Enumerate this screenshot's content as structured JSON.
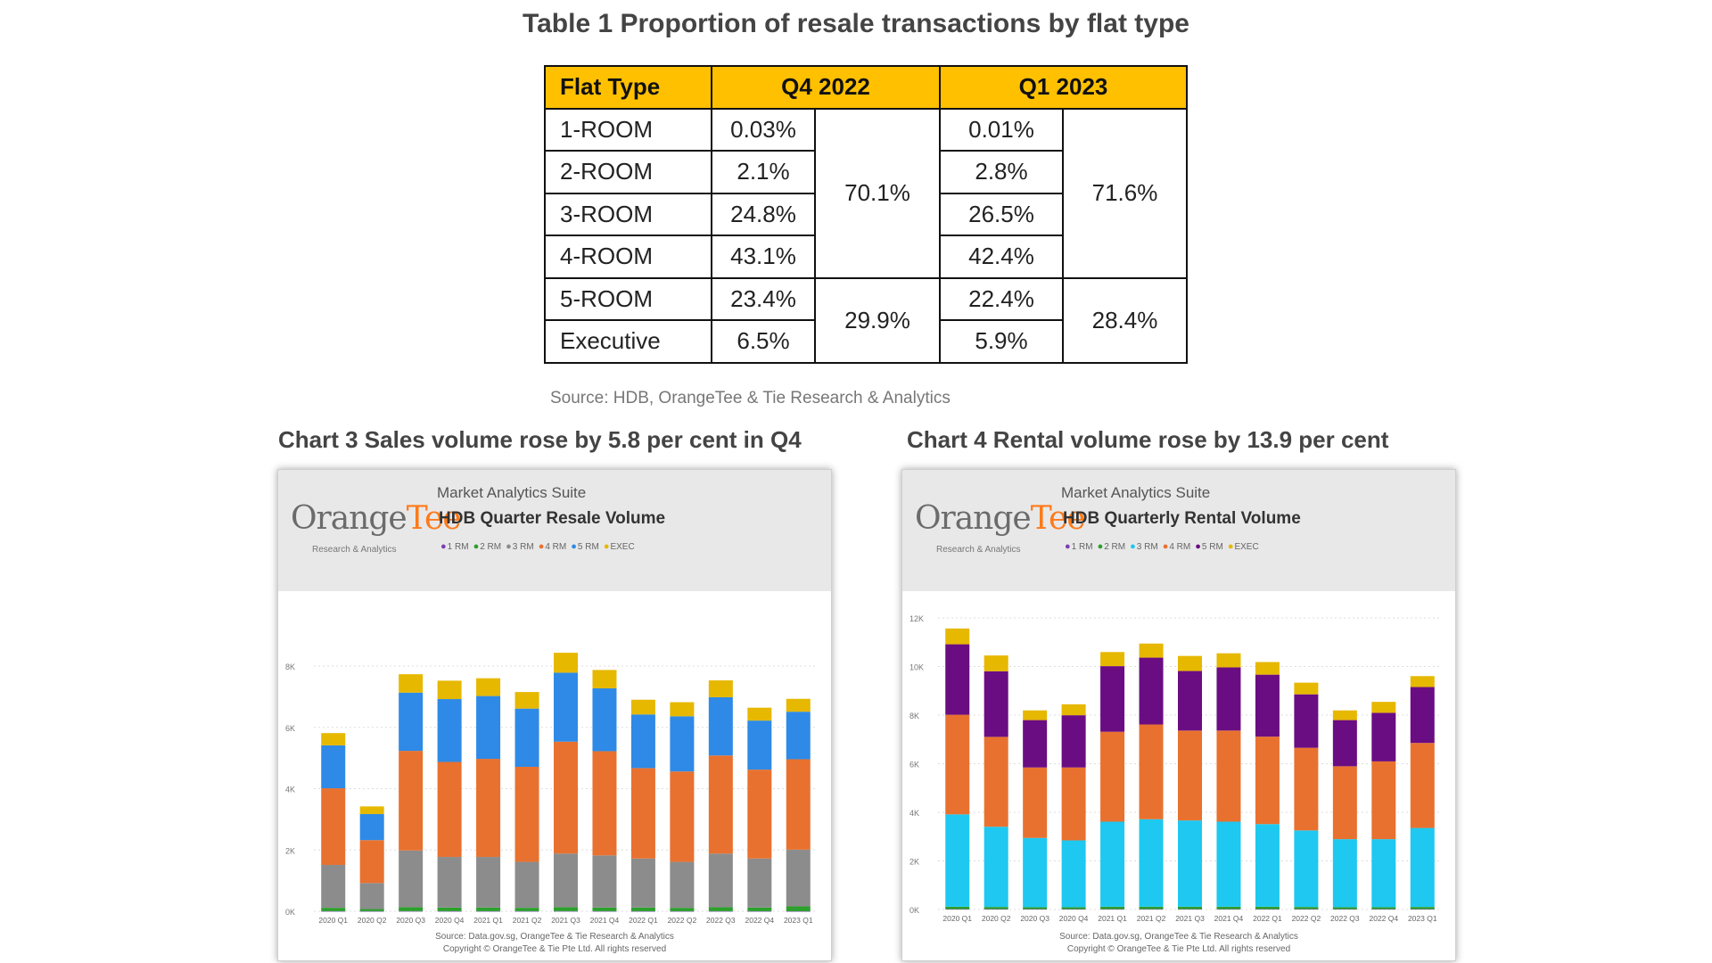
{
  "table": {
    "title": "Table 1 Proportion of resale transactions by flat type",
    "headers": [
      "Flat Type",
      "Q4 2022",
      "Q1 2023"
    ],
    "rows": [
      {
        "type": "1-ROOM",
        "q4": "0.03%",
        "q1": "0.01%"
      },
      {
        "type": "2-ROOM",
        "q4": "2.1%",
        "q1": "2.8%"
      },
      {
        "type": "3-ROOM",
        "q4": "24.8%",
        "q1": "26.5%"
      },
      {
        "type": "4-ROOM",
        "q4": "43.1%",
        "q1": "42.4%"
      },
      {
        "type": "5-ROOM",
        "q4": "23.4%",
        "q1": "22.4%"
      },
      {
        "type": "Executive",
        "q4": "6.5%",
        "q1": "5.9%"
      }
    ],
    "groups": {
      "q4_small": "70.1%",
      "q4_large": "29.9%",
      "q1_small": "71.6%",
      "q1_large": "28.4%"
    },
    "source": "Source: HDB, OrangeTee & Tie Research & Analytics",
    "header_color": "#ffc000"
  },
  "logo": {
    "orange": "Orange",
    "tee": "Tee",
    "sub": "Research & Analytics",
    "suite": "Market Analytics Suite"
  },
  "footer": {
    "line1": "Source: Data.gov.sg, OrangeTee & Tie Research & Analytics",
    "line2": "Copyright © OrangeTee & Tie Pte Ltd. All rights reserved"
  },
  "chart_data": [
    {
      "heading": "Chart 3 Sales volume rose by 5.8 per cent in Q4",
      "type": "bar",
      "stacked": true,
      "title": "HDB Quarter Resale Volume",
      "categories": [
        "2020 Q1",
        "2020 Q2",
        "2020 Q3",
        "2020 Q4",
        "2021 Q1",
        "2021 Q2",
        "2021 Q3",
        "2021 Q4",
        "2022 Q1",
        "2022 Q2",
        "2022 Q3",
        "2022 Q4",
        "2023 Q1"
      ],
      "yticks": [
        "0K",
        "2K",
        "4K",
        "6K",
        "8K"
      ],
      "ylim": [
        0,
        8000
      ],
      "grid": true,
      "legend_position": "top",
      "series": [
        {
          "name": "1 RM",
          "color": "#7b3fb5",
          "values": [
            3,
            2,
            4,
            3,
            3,
            3,
            4,
            3,
            2,
            2,
            3,
            2,
            1
          ]
        },
        {
          "name": "2 RM",
          "color": "#2ca02c",
          "values": [
            110,
            70,
            130,
            120,
            120,
            110,
            130,
            120,
            120,
            110,
            130,
            120,
            160
          ]
        },
        {
          "name": "3 RM",
          "color": "#8c8c8c",
          "values": [
            1400,
            850,
            1850,
            1650,
            1650,
            1500,
            1750,
            1700,
            1600,
            1500,
            1750,
            1600,
            1850
          ]
        },
        {
          "name": "4 RM",
          "color": "#e8712f",
          "values": [
            2500,
            1400,
            3250,
            3100,
            3200,
            3100,
            3650,
            3400,
            2950,
            2950,
            3200,
            2900,
            2950
          ]
        },
        {
          "name": "5 RM",
          "color": "#2e8ae6",
          "values": [
            1400,
            850,
            1900,
            2050,
            2050,
            1900,
            2250,
            2050,
            1750,
            1800,
            1900,
            1600,
            1550
          ]
        },
        {
          "name": "EXEC",
          "color": "#e6b800",
          "values": [
            400,
            250,
            600,
            600,
            580,
            540,
            650,
            600,
            480,
            460,
            550,
            420,
            420
          ]
        }
      ]
    },
    {
      "heading": "Chart 4 Rental volume rose by 13.9 per cent",
      "type": "bar",
      "stacked": true,
      "title": "HDB Quarterly Rental Volume",
      "categories": [
        "2020 Q1",
        "2020 Q2",
        "2020 Q3",
        "2020 Q4",
        "2021 Q1",
        "2021 Q2",
        "2021 Q3",
        "2021 Q4",
        "2022 Q1",
        "2022 Q2",
        "2022 Q3",
        "2022 Q4",
        "2023 Q1"
      ],
      "yticks": [
        "0K",
        "2K",
        "4K",
        "6K",
        "8K",
        "10K",
        "12K"
      ],
      "ylim": [
        0,
        12000
      ],
      "grid": true,
      "legend_position": "top",
      "series": [
        {
          "name": "1 RM",
          "color": "#7b3fb5",
          "values": [
            15,
            15,
            15,
            15,
            15,
            15,
            15,
            15,
            15,
            15,
            15,
            15,
            15
          ]
        },
        {
          "name": "2 RM",
          "color": "#2ca02c",
          "values": [
            100,
            90,
            80,
            80,
            100,
            100,
            100,
            100,
            100,
            90,
            80,
            80,
            90
          ]
        },
        {
          "name": "3 RM",
          "color": "#1ec8f0",
          "values": [
            3800,
            3300,
            2850,
            2750,
            3500,
            3600,
            3550,
            3500,
            3400,
            3150,
            2800,
            2800,
            3250
          ]
        },
        {
          "name": "4 RM",
          "color": "#e8712f",
          "values": [
            4100,
            3700,
            2900,
            3000,
            3700,
            3900,
            3700,
            3750,
            3600,
            3400,
            3000,
            3200,
            3500
          ]
        },
        {
          "name": "5 RM",
          "color": "#6a0d83",
          "values": [
            2900,
            2700,
            1950,
            2150,
            2700,
            2750,
            2450,
            2600,
            2550,
            2200,
            1900,
            2000,
            2300
          ]
        },
        {
          "name": "EXEC",
          "color": "#e6b800",
          "values": [
            650,
            650,
            400,
            450,
            580,
            580,
            620,
            580,
            520,
            480,
            400,
            450,
            450
          ]
        }
      ]
    }
  ]
}
